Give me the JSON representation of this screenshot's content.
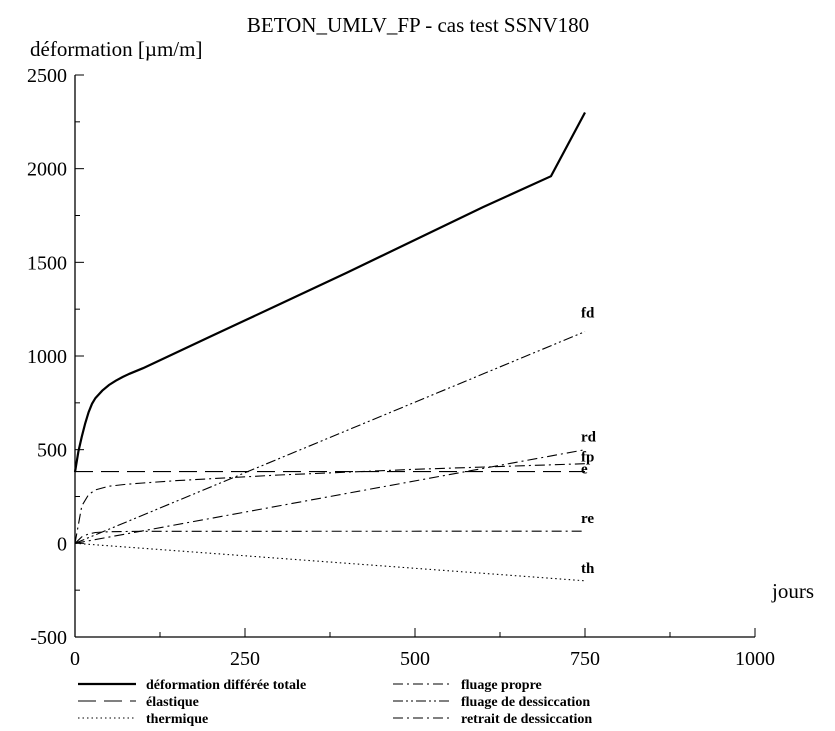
{
  "chart_data": {
    "type": "line",
    "title": "BETON_UMLV_FP - cas test SSNV180",
    "ylabel": "déformation [µm/m]",
    "xlabel": "jours",
    "xlim": [
      0,
      1000
    ],
    "ylim": [
      -500,
      2500
    ],
    "x_ticks": [
      0,
      250,
      500,
      750,
      1000
    ],
    "y_ticks": [
      -500,
      0,
      500,
      1000,
      1500,
      2000,
      2500
    ],
    "grid": false,
    "legend_position": "bottom",
    "series": [
      {
        "name": "déformation différée totale",
        "label": "",
        "style": "solid",
        "x": [
          0,
          5,
          10,
          15,
          20,
          25,
          30,
          40,
          50,
          60,
          70,
          80,
          100,
          150,
          200,
          250,
          300,
          400,
          500,
          600,
          700,
          750
        ],
        "y": [
          380,
          490,
          570,
          640,
          700,
          745,
          775,
          815,
          845,
          868,
          888,
          905,
          935,
          1020,
          1105,
          1190,
          1275,
          1445,
          1620,
          1795,
          1960,
          2300
        ]
      },
      {
        "name": "fluage de dessiccation",
        "label": "fd",
        "style": "dashdotdot",
        "x": [
          0,
          750
        ],
        "y": [
          0,
          1130
        ]
      },
      {
        "name": "retrait de dessiccation",
        "label": "rd",
        "style": "dashdot",
        "x": [
          0,
          750
        ],
        "y": [
          0,
          500
        ]
      },
      {
        "name": "fluage propre",
        "label": "fp",
        "style": "dashdot",
        "x": [
          0,
          10,
          20,
          30,
          50,
          75,
          100,
          150,
          200,
          300,
          500,
          750
        ],
        "y": [
          0,
          200,
          260,
          285,
          305,
          315,
          322,
          335,
          345,
          365,
          395,
          425
        ]
      },
      {
        "name": "élastique",
        "label": "e",
        "style": "longdash",
        "x": [
          0,
          750
        ],
        "y": [
          383,
          383
        ]
      },
      {
        "name": "",
        "label": "re",
        "style": "dashdot",
        "x": [
          0,
          10,
          20,
          30,
          50,
          100,
          750
        ],
        "y": [
          0,
          35,
          50,
          58,
          62,
          64,
          65
        ]
      },
      {
        "name": "thermique",
        "label": "th",
        "style": "dotted",
        "x": [
          0,
          750
        ],
        "y": [
          0,
          -200
        ]
      }
    ]
  }
}
